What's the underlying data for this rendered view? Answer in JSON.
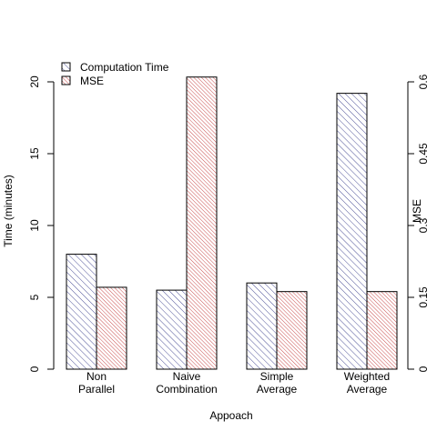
{
  "chart_data": {
    "type": "bar",
    "categories": [
      [
        "Non",
        "Parallel"
      ],
      [
        "Naive",
        "Combination"
      ],
      [
        "Simple",
        "Average"
      ],
      [
        "Weighted",
        "Average"
      ]
    ],
    "series": [
      {
        "name": "Computation Time",
        "axis": "left",
        "values": [
          8.0,
          5.5,
          6.0,
          19.2
        ],
        "color": "#3b3f8c"
      },
      {
        "name": "MSE",
        "axis": "right",
        "values": [
          0.171,
          0.61,
          0.162,
          0.162
        ],
        "color": "#c43a3a"
      }
    ],
    "title": "",
    "xlabel": "Appoach",
    "ylabel": "Time (minutes)",
    "y2label": "MSE",
    "ylim": [
      0,
      20
    ],
    "y2lim": [
      0,
      0.6
    ],
    "yticks": [
      "0",
      "5",
      "10",
      "15",
      "20"
    ],
    "y2ticks": [
      "0",
      "0.15",
      "0.3",
      "0.45",
      "0.6"
    ],
    "legend_position": "top-left",
    "grid": false,
    "fill": "hatched"
  }
}
